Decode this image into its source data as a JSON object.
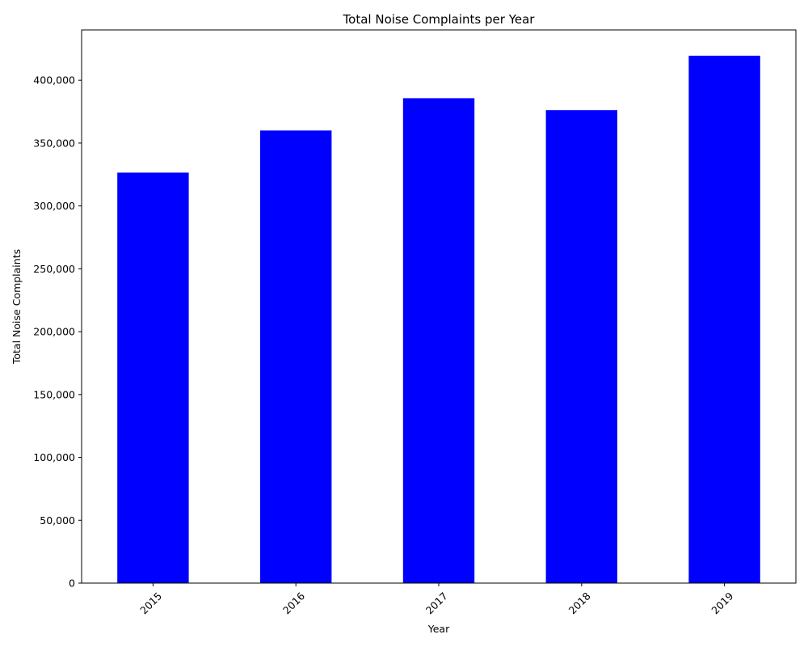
{
  "chart_data": {
    "type": "bar",
    "title": "Total Noise Complaints per Year",
    "xlabel": "Year",
    "ylabel": "Total Noise Complaints",
    "categories": [
      "2015",
      "2016",
      "2017",
      "2018",
      "2019"
    ],
    "series": [
      {
        "values": [
          326500,
          360000,
          385700,
          376200,
          419500
        ],
        "color": "#0000ff"
      }
    ],
    "ylim": [
      0,
      440000
    ],
    "yticks": [
      0,
      50000,
      100000,
      150000,
      200000,
      250000,
      300000,
      350000,
      400000
    ],
    "ytick_labels": [
      "0",
      "50,000",
      "100,000",
      "150,000",
      "200,000",
      "250,000",
      "300,000",
      "350,000",
      "400,000"
    ],
    "xtick_rotation_deg": 45,
    "grid": false,
    "legend": "none"
  }
}
